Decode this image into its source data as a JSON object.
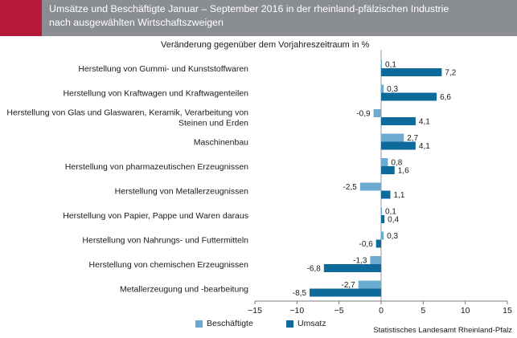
{
  "header": {
    "title_line1": "Umsätze und Beschäftigte Januar – September 2016 in der rheinland-pfälzischen Industrie",
    "title_line2": "nach ausgewählten Wirtschaftszweigen"
  },
  "colors": {
    "header_bg": "#8a8d91",
    "accent": "#b5193a",
    "series_light": "#6cabd0",
    "series_dark": "#0d6a9a"
  },
  "source": "Statistisches Landesamt Rheinland-Pfalz",
  "chart_data": {
    "type": "bar",
    "orientation": "horizontal",
    "title": "Veränderung gegenüber dem Vorjahreszeitraum in %",
    "categories": [
      [
        "Herstellung von Gummi- und Kunststoffwaren"
      ],
      [
        "Herstellung von Kraftwagen und Kraftwagenteilen"
      ],
      [
        "Herstellung von Glas und Glaswaren, Keramik, Verarbeitung von",
        "Steinen und Erden"
      ],
      [
        "Maschinenbau"
      ],
      [
        "Herstellung von pharmazeutischen Erzeugnissen"
      ],
      [
        "Herstellung von Metallerzeugnissen"
      ],
      [
        "Herstellung von Papier, Pappe und Waren daraus"
      ],
      [
        "Herstellung von Nahrungs- und Futtermitteln"
      ],
      [
        "Herstellung von chemischen Erzeugnissen"
      ],
      [
        "Metallerzeugung und -bearbeitung"
      ]
    ],
    "series": [
      {
        "name": "Beschäftigte",
        "color": "#6cabd0",
        "values": [
          0.1,
          0.3,
          -0.9,
          2.7,
          0.8,
          -2.5,
          0.1,
          0.3,
          -1.3,
          -2.7
        ],
        "labels": [
          "0,1",
          "0,3",
          "-0,9",
          "2,7",
          "0,8",
          "-2,5",
          "0,1",
          "0,3",
          "-1,3",
          "-2,7"
        ]
      },
      {
        "name": "Umsatz",
        "color": "#0d6a9a",
        "values": [
          7.2,
          6.6,
          4.1,
          4.1,
          1.6,
          1.1,
          0.4,
          -0.6,
          -6.8,
          -8.5
        ],
        "labels": [
          "7,2",
          "6,6",
          "4,1",
          "4,1",
          "1,6",
          "1,1",
          "0,4",
          "-0,6",
          "-6,8",
          "-8,5"
        ]
      }
    ],
    "xlim": [
      -15,
      15
    ],
    "xticks": [
      -15,
      -10,
      -5,
      0,
      5,
      10,
      15
    ],
    "xtick_labels": [
      "−15",
      "−10",
      "−5",
      "0",
      "5",
      "10",
      "15"
    ],
    "legend_position": "bottom-left",
    "grid": false
  }
}
